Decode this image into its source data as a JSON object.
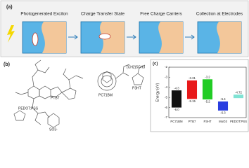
{
  "panel_a": {
    "label": "(a)",
    "steps": [
      "Photogenerated Exciton",
      "Charge Transfer State",
      "Free Charge Carriers",
      "Collection at Electrodes"
    ]
  },
  "panel_b": {
    "label": "(b)",
    "molecules": [
      "PTB7",
      "PC71BM",
      "P3HT",
      "PEDOT:PSS"
    ],
    "side_chain": "(CH2)5CH3",
    "sulfonate": "SO3-"
  },
  "chart_data": {
    "type": "floating-bar",
    "label": "(c)",
    "y_label": "Energy (eV)",
    "categories": [
      "PC71BM",
      "PTB7",
      "P3HT",
      "MoO3",
      "PEDOT:PSS"
    ],
    "lumo": [
      -4.3,
      -3.31,
      -3.2,
      -5.4,
      -4.72
    ],
    "lumo_labels": [
      "-4.3",
      "-3.31",
      "-3.2",
      "-5.4",
      "-4.72"
    ],
    "homo": [
      -6.0,
      -5.15,
      -5.2,
      -6.3,
      null
    ],
    "homo_labels": [
      "-6.0",
      "-5.15",
      "-5.2",
      "-6.3",
      null
    ],
    "colors": [
      "#111111",
      "#e8191a",
      "#22cc25",
      "#2a3ee0",
      "#7fe3d3"
    ],
    "ylim": [
      -7,
      -2
    ],
    "yticks": [
      -2,
      -3,
      -4,
      -5,
      -6,
      -7
    ]
  }
}
